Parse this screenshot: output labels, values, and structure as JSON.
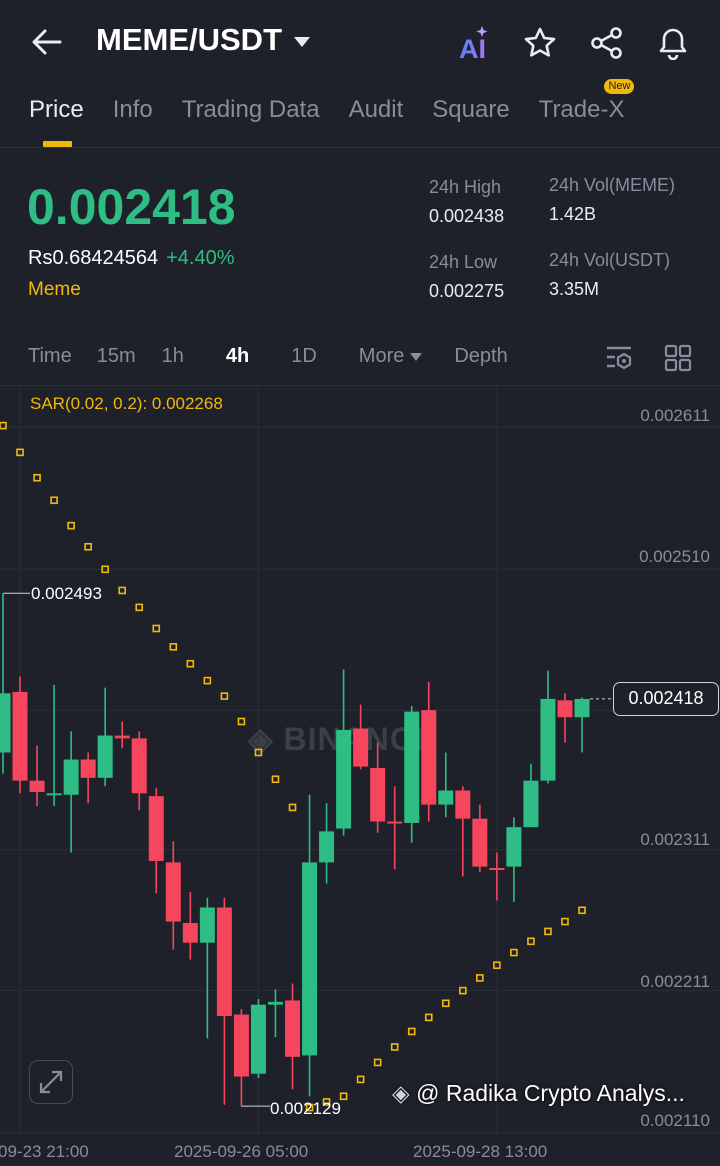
{
  "header": {
    "title": "MEME/USDT",
    "icons": [
      "back-arrow-icon",
      "ai-icon",
      "star-icon",
      "share-icon",
      "bell-icon"
    ],
    "ai_label": "AI"
  },
  "tabs": [
    {
      "label": "Price",
      "active": true
    },
    {
      "label": "Info"
    },
    {
      "label": "Trading Data"
    },
    {
      "label": "Audit"
    },
    {
      "label": "Square"
    },
    {
      "label": "Trade-X",
      "badge": "New"
    }
  ],
  "ticker": {
    "last_price": "0.002418",
    "fiat_price": "Rs0.68424564",
    "change_pct": "+4.40%",
    "tag": "Meme",
    "stats": [
      {
        "label": "24h High",
        "value": "0.002438"
      },
      {
        "label": "24h Vol(MEME)",
        "value": "1.42B"
      },
      {
        "label": "24h Low",
        "value": "0.002275"
      },
      {
        "label": "24h Vol(USDT)",
        "value": "3.35M"
      }
    ]
  },
  "intervals": {
    "items": [
      "Time",
      "15m",
      "1h",
      "4h",
      "1D",
      "More",
      "Depth"
    ],
    "active": "4h"
  },
  "colors": {
    "up": "#2ebd85",
    "down": "#f6465d",
    "sar": "#f0b90b",
    "accent": "#f0b90b",
    "background": "#1e2129"
  },
  "chart_data": {
    "type": "candlestick",
    "indicator_label": "SAR(0.02, 0.2): 0.002268",
    "y_ticks": [
      "0.002611",
      "0.002510",
      "0.002311",
      "0.002211",
      "0.002110"
    ],
    "y_tick_values": [
      0.002611,
      0.00251,
      0.00241,
      0.002311,
      0.002211,
      0.00211
    ],
    "x_ticks": [
      "09-23 21:00",
      "2025-09-26 05:00",
      "2025-09-28 13:00"
    ],
    "ylim": [
      0.00209,
      0.002655
    ],
    "last_price_label": "0.002418",
    "high_marker": "0.002493",
    "low_marker": "0.002129",
    "grid": true,
    "ohlc": [
      [
        0.00238,
        0.002493,
        0.002365,
        0.002422
      ],
      [
        0.002423,
        0.002434,
        0.002351,
        0.00236
      ],
      [
        0.00236,
        0.002385,
        0.002342,
        0.002352
      ],
      [
        0.002351,
        0.002428,
        0.002342,
        0.002351
      ],
      [
        0.00235,
        0.002395,
        0.002309,
        0.002375
      ],
      [
        0.002375,
        0.00238,
        0.002344,
        0.002362
      ],
      [
        0.002362,
        0.002426,
        0.002356,
        0.002392
      ],
      [
        0.002392,
        0.002402,
        0.002383,
        0.00239
      ],
      [
        0.00239,
        0.002395,
        0.002339,
        0.002351
      ],
      [
        0.002349,
        0.002355,
        0.00228,
        0.002303
      ],
      [
        0.002302,
        0.002317,
        0.00224,
        0.00226
      ],
      [
        0.002259,
        0.002281,
        0.002233,
        0.002245
      ],
      [
        0.002245,
        0.002277,
        0.002177,
        0.00227
      ],
      [
        0.00227,
        0.002277,
        0.00213,
        0.002193
      ],
      [
        0.002194,
        0.002198,
        0.002129,
        0.00215
      ],
      [
        0.002152,
        0.002205,
        0.002149,
        0.002201
      ],
      [
        0.002201,
        0.002212,
        0.002178,
        0.002203
      ],
      [
        0.002204,
        0.002216,
        0.002141,
        0.002164
      ],
      [
        0.002165,
        0.00235,
        0.002136,
        0.002302
      ],
      [
        0.002302,
        0.002344,
        0.002287,
        0.002324
      ],
      [
        0.002326,
        0.002439,
        0.002321,
        0.002396
      ],
      [
        0.002397,
        0.002414,
        0.002368,
        0.00237
      ],
      [
        0.002369,
        0.002387,
        0.002323,
        0.002331
      ],
      [
        0.002331,
        0.002356,
        0.002297,
        0.00233
      ],
      [
        0.00233,
        0.002413,
        0.002316,
        0.002409
      ],
      [
        0.00241,
        0.00243,
        0.002331,
        0.002343
      ],
      [
        0.002343,
        0.00238,
        0.002334,
        0.002353
      ],
      [
        0.002353,
        0.002356,
        0.002292,
        0.002333
      ],
      [
        0.002333,
        0.002343,
        0.002295,
        0.002299
      ],
      [
        0.002298,
        0.002309,
        0.002275,
        0.002297
      ],
      [
        0.002299,
        0.002334,
        0.002274,
        0.002327
      ],
      [
        0.002327,
        0.002372,
        0.002327,
        0.00236
      ],
      [
        0.00236,
        0.002438,
        0.002358,
        0.002418
      ],
      [
        0.002417,
        0.002422,
        0.002387,
        0.002405
      ],
      [
        0.002405,
        0.002419,
        0.00238,
        0.002418
      ]
    ],
    "sar": [
      0.002612,
      0.002593,
      0.002575,
      0.002559,
      0.002541,
      0.002526,
      0.00251,
      0.002495,
      0.002483,
      0.002468,
      0.002455,
      0.002443,
      0.002431,
      0.00242,
      0.002402,
      0.00238,
      0.002361,
      0.002341,
      0.002128,
      0.002132,
      0.002136,
      0.002148,
      0.00216,
      0.002171,
      0.002182,
      0.002192,
      0.002202,
      0.002211,
      0.00222,
      0.002229,
      0.002238,
      0.002246,
      0.002253,
      0.00226,
      0.002268
    ]
  },
  "watermark": {
    "brand": "BINANCE",
    "user": "@ Radika Crypto Analys..."
  }
}
